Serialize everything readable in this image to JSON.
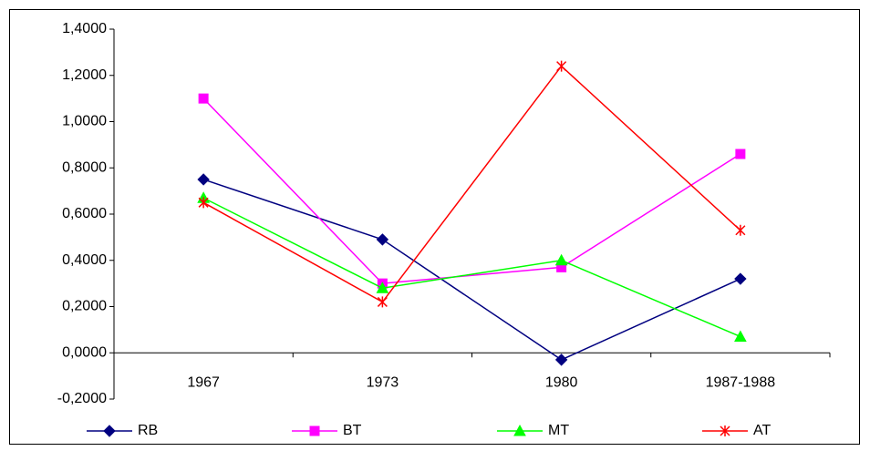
{
  "chart_data": {
    "type": "line",
    "categories": [
      "1967",
      "1973",
      "1980",
      "1987-1988"
    ],
    "series": [
      {
        "name": "RB",
        "color": "#000080",
        "marker": "diamond",
        "values": [
          0.75,
          0.49,
          -0.03,
          0.32
        ]
      },
      {
        "name": "BT",
        "color": "#ff00ff",
        "marker": "square",
        "values": [
          1.1,
          0.3,
          0.37,
          0.86
        ]
      },
      {
        "name": "MT",
        "color": "#00ff00",
        "marker": "triangle",
        "values": [
          0.67,
          0.28,
          0.4,
          0.07
        ]
      },
      {
        "name": "AT",
        "color": "#ff0000",
        "marker": "star",
        "values": [
          0.65,
          0.22,
          1.24,
          0.53
        ]
      }
    ],
    "ylim": [
      -0.2,
      1.4
    ],
    "yticks": [
      {
        "value": -0.2,
        "label": "-0,2000"
      },
      {
        "value": 0,
        "label": "0,0000"
      },
      {
        "value": 0.2,
        "label": "0,2000"
      },
      {
        "value": 0.4,
        "label": "0,4000"
      },
      {
        "value": 0.6,
        "label": "0,6000"
      },
      {
        "value": 0.8,
        "label": "0,8000"
      },
      {
        "value": 1.0,
        "label": "1,0000"
      },
      {
        "value": 1.2,
        "label": "1,2000"
      },
      {
        "value": 1.4,
        "label": "1,4000"
      }
    ],
    "legend": "bottom"
  }
}
